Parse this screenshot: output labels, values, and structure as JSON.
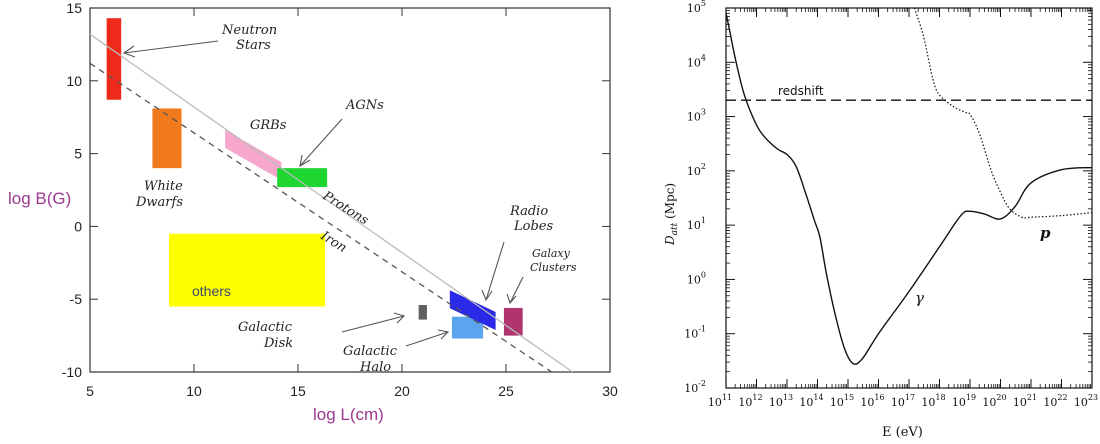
{
  "chart_data": [
    {
      "type": "scatter",
      "title": "",
      "xlabel": "log L(cm)",
      "ylabel": "log B(G)",
      "xlim": [
        5,
        30
      ],
      "ylim": [
        -10,
        15
      ],
      "x_ticks": [
        "5",
        "10",
        "15",
        "20",
        "25",
        "30"
      ],
      "y_ticks": [
        "15",
        "10",
        "5",
        "0",
        "-5",
        "-10"
      ],
      "axis_label_color": "#9b3a8f",
      "lines": [
        {
          "name": "Protons",
          "style": "solid",
          "color": "#bbbbbb",
          "points": [
            [
              5,
              13.2
            ],
            [
              28.2,
              -10
            ]
          ]
        },
        {
          "name": "Iron",
          "style": "dashed",
          "color": "#555555",
          "points": [
            [
              5,
              11.2
            ],
            [
              27.2,
              -10
            ]
          ]
        }
      ],
      "regions": [
        {
          "name": "Neutron Stars",
          "color": "#ee2a1a",
          "x": [
            5.8,
            6.5
          ],
          "y": [
            8.7,
            14.3
          ]
        },
        {
          "name": "White Dwarfs",
          "color": "#f07a1c",
          "x": [
            8.0,
            9.4
          ],
          "y": [
            4.0,
            8.1
          ]
        },
        {
          "name": "GRBs",
          "color": "#f7a6cc",
          "band": [
            [
              11.5,
              6.0
            ],
            [
              14.2,
              3.8
            ]
          ]
        },
        {
          "name": "AGNs",
          "color": "#1fd631",
          "x": [
            14.0,
            16.4
          ],
          "y": [
            2.7,
            4.0
          ]
        },
        {
          "name": "others",
          "color": "#ffff00",
          "x": [
            8.8,
            16.3
          ],
          "y": [
            -5.5,
            -0.5
          ]
        },
        {
          "name": "Galactic Disk",
          "color": "#555555",
          "x": [
            20.8,
            21.2
          ],
          "y": [
            -6.4,
            -5.4
          ]
        },
        {
          "name": "Galactic Halo",
          "color": "#5aa5ee",
          "x": [
            22.4,
            23.9
          ],
          "y": [
            -7.7,
            -6.2
          ]
        },
        {
          "name": "Radio Lobes",
          "color": "#2a2ae8",
          "band": [
            [
              22.3,
              -5.0
            ],
            [
              24.5,
              -6.5
            ]
          ]
        },
        {
          "name": "Galaxy Clusters",
          "color": "#b0356e",
          "x": [
            24.9,
            25.8
          ],
          "y": [
            -7.5,
            -5.6
          ]
        }
      ],
      "annotations": {
        "neutron_stars": [
          "Neutron",
          "Stars"
        ],
        "white_dwarfs": [
          "White",
          "Dwarfs"
        ],
        "grbs": "GRBs",
        "agns": "AGNs",
        "protons": "Protons",
        "iron": "Iron",
        "radio_lobes": [
          "Radio",
          "Lobes"
        ],
        "galaxy_clusters": [
          "Galaxy",
          "Clusters"
        ],
        "others": "others",
        "galactic_disk": [
          "Galactic",
          "Disk"
        ],
        "galactic_halo": [
          "Galactic",
          "Halo"
        ]
      }
    },
    {
      "type": "line",
      "title": "",
      "xlabel": "E (eV)",
      "ylabel": "D_att (Mpc)",
      "ylabel_main": "D",
      "ylabel_sub": "att",
      "ylabel_unit": "(Mpc)",
      "x_scale": "log",
      "y_scale": "log",
      "xlim": [
        100000000000.0,
        1e+23
      ],
      "ylim": [
        0.01,
        100000.0
      ],
      "x_tick_exponents": [
        "11",
        "12",
        "13",
        "14",
        "15",
        "16",
        "17",
        "18",
        "19",
        "20",
        "21",
        "22",
        "23"
      ],
      "y_tick_exponents": [
        "-2",
        "-1",
        "0",
        "1",
        "2",
        "3",
        "4",
        "5"
      ],
      "tick_base": "10",
      "series": [
        {
          "name": "γ",
          "style": "solid",
          "points": [
            [
              100000000000.0,
              80000
            ],
            [
              130000000000.0,
              40000
            ],
            [
              200000000000.0,
              12000
            ],
            [
              400000000000.0,
              2500
            ],
            [
              1000000000000.0,
              700
            ],
            [
              2000000000000.0,
              400
            ],
            [
              5000000000000.0,
              250
            ],
            [
              10000000000000.0,
              200
            ],
            [
              20000000000000.0,
              120
            ],
            [
              40000000000000.0,
              40
            ],
            [
              80000000000000.0,
              12
            ],
            [
              120000000000000.0,
              6
            ],
            [
              200000000000000.0,
              1.2
            ],
            [
              400000000000000.0,
              0.2
            ],
            [
              800000000000000.0,
              0.05
            ],
            [
              1500000000000000.0,
              0.028
            ],
            [
              3000000000000000.0,
              0.035
            ],
            [
              1e+16,
              0.1
            ],
            [
              1e+17,
              0.6
            ],
            [
              1e+18,
              4
            ],
            [
              5e+18,
              15
            ],
            [
              1e+19,
              18
            ],
            [
              3e+19,
              16
            ],
            [
              1e+20,
              13
            ],
            [
              3e+20,
              22
            ],
            [
              1e+21,
              60
            ],
            [
              1e+22,
              105
            ],
            [
              1e+23,
              115
            ]
          ]
        },
        {
          "name": "p",
          "style": "dotted",
          "points": [
            [
              1.5e+17,
              100000
            ],
            [
              3e+17,
              30000
            ],
            [
              6e+17,
              5000
            ],
            [
              1e+18,
              2500
            ],
            [
              3e+18,
              1500
            ],
            [
              7e+18,
              1200
            ],
            [
              1e+19,
              1100
            ],
            [
              2e+19,
              500
            ],
            [
              5e+19,
              100
            ],
            [
              1e+20,
              40
            ],
            [
              2e+20,
              20
            ],
            [
              5e+20,
              14
            ],
            [
              1e+21,
              14
            ],
            [
              1e+22,
              15
            ],
            [
              1e+23,
              17
            ]
          ]
        }
      ],
      "reference_line": {
        "label": "redshift",
        "y": 2000,
        "style": "dashed"
      },
      "labels": {
        "gamma": "γ",
        "p": "p",
        "redshift": "redshift"
      }
    }
  ]
}
